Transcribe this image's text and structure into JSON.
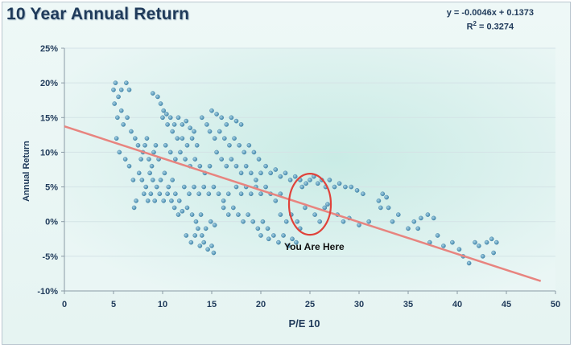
{
  "chart_data": {
    "type": "scatter",
    "title": "10 Year Annual Return",
    "equation": "y = -0.0046x + 0.1373",
    "r2_label": "R",
    "r2_value": "= 0.3274",
    "xlabel": "P/E 10",
    "ylabel": "Annual Return",
    "xlim": [
      0,
      50
    ],
    "ylim": [
      -0.1,
      0.25
    ],
    "x_ticks": [
      "0",
      "5",
      "10",
      "15",
      "20",
      "25",
      "30",
      "35",
      "40",
      "45",
      "50"
    ],
    "y_ticks": [
      "-10%",
      "-5%",
      "0%",
      "5%",
      "10%",
      "15%",
      "20%",
      "25%"
    ],
    "trendline": {
      "slope": -0.0046,
      "intercept": 0.1373,
      "x_range": [
        0,
        48.5
      ]
    },
    "annotation": {
      "text": "You Are Here",
      "x": 25,
      "y": 0.025
    },
    "colors": {
      "points": "#4f93b8",
      "trendline": "#e8847f",
      "ellipse": "#e0423a",
      "text": "#1f3a5a"
    },
    "series": [
      {
        "points": [
          [
            5.0,
            0.19
          ],
          [
            5.2,
            0.2
          ],
          [
            5.5,
            0.18
          ],
          [
            5.8,
            0.19
          ],
          [
            6.3,
            0.2
          ],
          [
            6.6,
            0.19
          ],
          [
            5.1,
            0.17
          ],
          [
            5.4,
            0.15
          ],
          [
            5.8,
            0.16
          ],
          [
            6.0,
            0.14
          ],
          [
            6.4,
            0.15
          ],
          [
            6.8,
            0.13
          ],
          [
            7.2,
            0.12
          ],
          [
            5.3,
            0.12
          ],
          [
            5.6,
            0.1
          ],
          [
            6.2,
            0.09
          ],
          [
            6.6,
            0.08
          ],
          [
            7.0,
            0.06
          ],
          [
            7.3,
            0.03
          ],
          [
            7.1,
            0.02
          ],
          [
            7.5,
            0.11
          ],
          [
            7.8,
            0.09
          ],
          [
            8.0,
            0.1
          ],
          [
            8.2,
            0.11
          ],
          [
            8.4,
            0.12
          ],
          [
            8.6,
            0.09
          ],
          [
            8.9,
            0.08
          ],
          [
            9.1,
            0.1
          ],
          [
            9.3,
            0.11
          ],
          [
            9.6,
            0.09
          ],
          [
            7.6,
            0.07
          ],
          [
            7.9,
            0.06
          ],
          [
            8.3,
            0.05
          ],
          [
            8.7,
            0.07
          ],
          [
            9.0,
            0.06
          ],
          [
            9.4,
            0.05
          ],
          [
            9.8,
            0.06
          ],
          [
            10.2,
            0.07
          ],
          [
            10.6,
            0.05
          ],
          [
            11.0,
            0.06
          ],
          [
            8.1,
            0.04
          ],
          [
            8.5,
            0.03
          ],
          [
            8.8,
            0.04
          ],
          [
            9.2,
            0.03
          ],
          [
            9.7,
            0.04
          ],
          [
            10.1,
            0.03
          ],
          [
            10.5,
            0.04
          ],
          [
            10.9,
            0.03
          ],
          [
            11.3,
            0.04
          ],
          [
            11.7,
            0.03
          ],
          [
            9.0,
            0.185
          ],
          [
            9.5,
            0.18
          ],
          [
            9.8,
            0.17
          ],
          [
            10.1,
            0.16
          ],
          [
            10.4,
            0.155
          ],
          [
            10.8,
            0.15
          ],
          [
            11.2,
            0.14
          ],
          [
            11.6,
            0.15
          ],
          [
            12.0,
            0.14
          ],
          [
            12.4,
            0.145
          ],
          [
            12.8,
            0.135
          ],
          [
            13.2,
            0.13
          ],
          [
            10.0,
            0.15
          ],
          [
            10.5,
            0.14
          ],
          [
            11.0,
            0.13
          ],
          [
            11.5,
            0.12
          ],
          [
            12.0,
            0.12
          ],
          [
            12.5,
            0.11
          ],
          [
            13.0,
            0.12
          ],
          [
            13.5,
            0.11
          ],
          [
            10.3,
            0.11
          ],
          [
            10.8,
            0.1
          ],
          [
            11.3,
            0.09
          ],
          [
            11.8,
            0.1
          ],
          [
            12.3,
            0.09
          ],
          [
            12.8,
            0.08
          ],
          [
            13.3,
            0.09
          ],
          [
            13.8,
            0.08
          ],
          [
            14.3,
            0.07
          ],
          [
            14.8,
            0.08
          ],
          [
            11.2,
            0.02
          ],
          [
            11.6,
            0.01
          ],
          [
            12.0,
            0.015
          ],
          [
            12.5,
            0.02
          ],
          [
            13.0,
            0.01
          ],
          [
            13.4,
            0.0
          ],
          [
            13.9,
            0.01
          ],
          [
            14.4,
            -0.01
          ],
          [
            14.9,
            0.0
          ],
          [
            15.3,
            -0.005
          ],
          [
            12.2,
            0.05
          ],
          [
            12.7,
            0.04
          ],
          [
            13.2,
            0.05
          ],
          [
            13.7,
            0.04
          ],
          [
            14.2,
            0.05
          ],
          [
            14.7,
            0.04
          ],
          [
            15.2,
            0.05
          ],
          [
            15.7,
            0.04
          ],
          [
            16.2,
            0.03
          ],
          [
            16.7,
            0.04
          ],
          [
            12.4,
            -0.02
          ],
          [
            12.9,
            -0.03
          ],
          [
            13.3,
            -0.02
          ],
          [
            13.8,
            -0.035
          ],
          [
            14.2,
            -0.03
          ],
          [
            14.6,
            -0.04
          ],
          [
            15.0,
            -0.035
          ],
          [
            15.2,
            -0.045
          ],
          [
            13.6,
            -0.01
          ],
          [
            14.0,
            -0.02
          ],
          [
            14.0,
            0.15
          ],
          [
            14.5,
            0.14
          ],
          [
            15.0,
            0.16
          ],
          [
            15.5,
            0.155
          ],
          [
            16.0,
            0.15
          ],
          [
            16.5,
            0.14
          ],
          [
            17.0,
            0.15
          ],
          [
            17.5,
            0.145
          ],
          [
            18.0,
            0.14
          ],
          [
            14.8,
            0.13
          ],
          [
            15.3,
            0.12
          ],
          [
            15.8,
            0.13
          ],
          [
            16.3,
            0.12
          ],
          [
            16.8,
            0.11
          ],
          [
            17.3,
            0.12
          ],
          [
            17.8,
            0.11
          ],
          [
            18.3,
            0.1
          ],
          [
            18.8,
            0.11
          ],
          [
            19.3,
            0.1
          ],
          [
            19.8,
            0.09
          ],
          [
            15.5,
            0.1
          ],
          [
            16.0,
            0.09
          ],
          [
            16.5,
            0.08
          ],
          [
            17.0,
            0.09
          ],
          [
            17.5,
            0.08
          ],
          [
            18.0,
            0.07
          ],
          [
            18.5,
            0.08
          ],
          [
            19.0,
            0.07
          ],
          [
            19.5,
            0.06
          ],
          [
            20.0,
            0.07
          ],
          [
            16.2,
            0.02
          ],
          [
            16.7,
            0.01
          ],
          [
            17.2,
            0.02
          ],
          [
            17.7,
            0.01
          ],
          [
            18.2,
            0.0
          ],
          [
            18.7,
            0.01
          ],
          [
            19.2,
            0.0
          ],
          [
            19.7,
            -0.01
          ],
          [
            20.2,
            0.0
          ],
          [
            20.7,
            -0.01
          ],
          [
            17.5,
            0.05
          ],
          [
            18.0,
            0.04
          ],
          [
            18.5,
            0.05
          ],
          [
            19.0,
            0.04
          ],
          [
            19.5,
            0.05
          ],
          [
            20.0,
            0.04
          ],
          [
            20.5,
            0.05
          ],
          [
            21.0,
            0.04
          ],
          [
            21.5,
            0.03
          ],
          [
            22.0,
            0.04
          ],
          [
            20.5,
            0.08
          ],
          [
            21.0,
            0.07
          ],
          [
            21.5,
            0.075
          ],
          [
            22.0,
            0.065
          ],
          [
            22.5,
            0.07
          ],
          [
            23.0,
            0.06
          ],
          [
            23.5,
            0.065
          ],
          [
            24.0,
            0.06
          ],
          [
            20.0,
            -0.02
          ],
          [
            20.8,
            -0.025
          ],
          [
            21.3,
            -0.02
          ],
          [
            21.8,
            -0.03
          ],
          [
            22.3,
            -0.02
          ],
          [
            22.8,
            -0.035
          ],
          [
            23.2,
            -0.025
          ],
          [
            23.6,
            -0.03
          ],
          [
            22.0,
            0.01
          ],
          [
            22.6,
            0.0
          ],
          [
            23.1,
            0.01
          ],
          [
            23.7,
            0.0
          ],
          [
            24.2,
            0.05
          ],
          [
            24.6,
            0.055
          ],
          [
            25.0,
            0.06
          ],
          [
            25.4,
            0.065
          ],
          [
            25.8,
            0.055
          ],
          [
            26.2,
            0.06
          ],
          [
            26.6,
            0.05
          ],
          [
            27.0,
            0.06
          ],
          [
            24.5,
            0.02
          ],
          [
            25.5,
            0.01
          ],
          [
            26.0,
            0.0
          ],
          [
            26.5,
            0.02
          ],
          [
            24.0,
            -0.01
          ],
          [
            26.8,
            0.025
          ],
          [
            27.5,
            0.05
          ],
          [
            28.0,
            0.055
          ],
          [
            28.6,
            0.05
          ],
          [
            29.2,
            0.05
          ],
          [
            29.8,
            0.045
          ],
          [
            30.4,
            0.04
          ],
          [
            27.8,
            0.01
          ],
          [
            28.4,
            0.0
          ],
          [
            29.0,
            0.005
          ],
          [
            30.0,
            -0.005
          ],
          [
            31.0,
            0.0
          ],
          [
            32.0,
            0.03
          ],
          [
            32.4,
            0.04
          ],
          [
            32.8,
            0.035
          ],
          [
            33.0,
            0.02
          ],
          [
            32.2,
            0.02
          ],
          [
            33.4,
            0.0
          ],
          [
            34.0,
            0.01
          ],
          [
            35.0,
            -0.01
          ],
          [
            35.6,
            0.0
          ],
          [
            36.3,
            0.005
          ],
          [
            37.0,
            0.01
          ],
          [
            37.6,
            0.005
          ],
          [
            36.0,
            -0.01
          ],
          [
            37.2,
            -0.03
          ],
          [
            38.0,
            -0.02
          ],
          [
            38.6,
            -0.035
          ],
          [
            39.5,
            -0.03
          ],
          [
            40.2,
            -0.04
          ],
          [
            40.6,
            -0.05
          ],
          [
            41.2,
            -0.06
          ],
          [
            41.8,
            -0.03
          ],
          [
            42.2,
            -0.035
          ],
          [
            42.6,
            -0.05
          ],
          [
            43.0,
            -0.03
          ],
          [
            43.5,
            -0.025
          ],
          [
            44.0,
            -0.03
          ],
          [
            43.7,
            -0.045
          ]
        ]
      }
    ]
  }
}
